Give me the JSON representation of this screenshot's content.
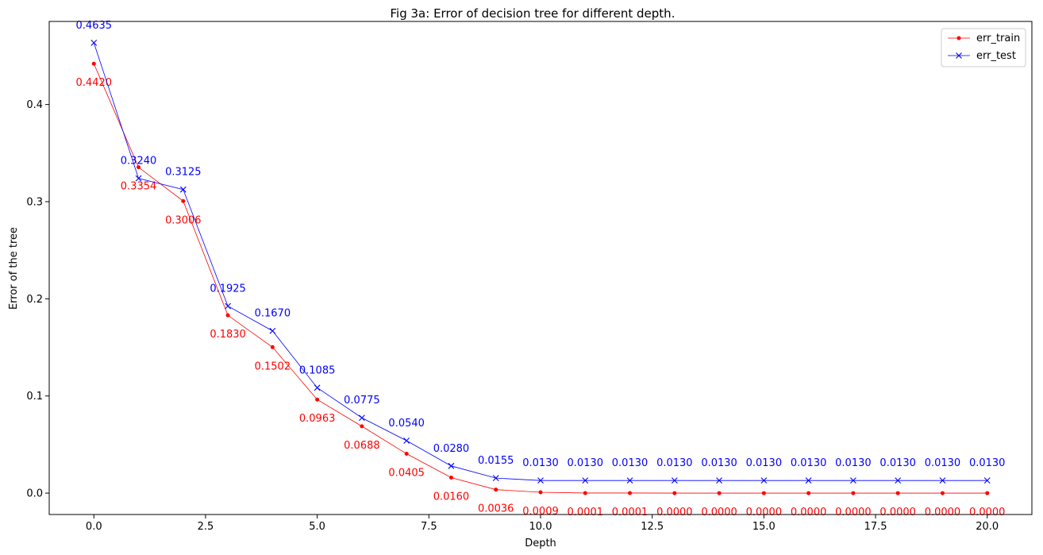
{
  "chart_data": {
    "type": "line",
    "title": "Fig 3a: Error of decision tree for different depth.",
    "xlabel": "Depth",
    "ylabel": "Error of the tree",
    "xlim": [
      -1,
      21
    ],
    "ylim": [
      -0.022,
      0.4855
    ],
    "xticks": [
      0.0,
      2.5,
      5.0,
      7.5,
      10.0,
      12.5,
      15.0,
      17.5,
      20.0
    ],
    "xtick_labels": [
      "0.0",
      "2.5",
      "5.0",
      "7.5",
      "10.0",
      "12.5",
      "15.0",
      "17.5",
      "20.0"
    ],
    "yticks": [
      0.0,
      0.1,
      0.2,
      0.3,
      0.4
    ],
    "ytick_labels": [
      "0.0",
      "0.1",
      "0.2",
      "0.3",
      "0.4"
    ],
    "legend_position": "top-right",
    "grid": false,
    "x": [
      0,
      1,
      2,
      3,
      4,
      5,
      6,
      7,
      8,
      9,
      10,
      11,
      12,
      13,
      14,
      15,
      16,
      17,
      18,
      19,
      20
    ],
    "series": [
      {
        "name": "err_train",
        "color": "#ff0000",
        "marker": "dot",
        "values": [
          0.442,
          0.3354,
          0.3006,
          0.183,
          0.1502,
          0.0963,
          0.0688,
          0.0405,
          0.016,
          0.0036,
          0.0009,
          0.0001,
          0.0001,
          0.0,
          0.0,
          0.0,
          0.0,
          0.0,
          0.0,
          0.0,
          0.0
        ],
        "labels": [
          "0.4420",
          "0.3354",
          "0.3006",
          "0.1830",
          "0.1502",
          "0.0963",
          "0.0688",
          "0.0405",
          "0.0160",
          "0.0036",
          "0.0009",
          "0.0001",
          "0.0001",
          "0.0000",
          "0.0000",
          "0.0000",
          "0.0000",
          "0.0000",
          "0.0000",
          "0.0000",
          "0.0000"
        ],
        "label_side": "below"
      },
      {
        "name": "err_test",
        "color": "#0000ff",
        "marker": "x",
        "values": [
          0.4635,
          0.324,
          0.3125,
          0.1925,
          0.167,
          0.1085,
          0.0775,
          0.054,
          0.028,
          0.0155,
          0.013,
          0.013,
          0.013,
          0.013,
          0.013,
          0.013,
          0.013,
          0.013,
          0.013,
          0.013,
          0.013
        ],
        "labels": [
          "0.4635",
          "0.3240",
          "0.3125",
          "0.1925",
          "0.1670",
          "0.1085",
          "0.0775",
          "0.0540",
          "0.0280",
          "0.0155",
          "0.0130",
          "0.0130",
          "0.0130",
          "0.0130",
          "0.0130",
          "0.0130",
          "0.0130",
          "0.0130",
          "0.0130",
          "0.0130",
          "0.0130"
        ],
        "label_side": "above"
      }
    ]
  }
}
